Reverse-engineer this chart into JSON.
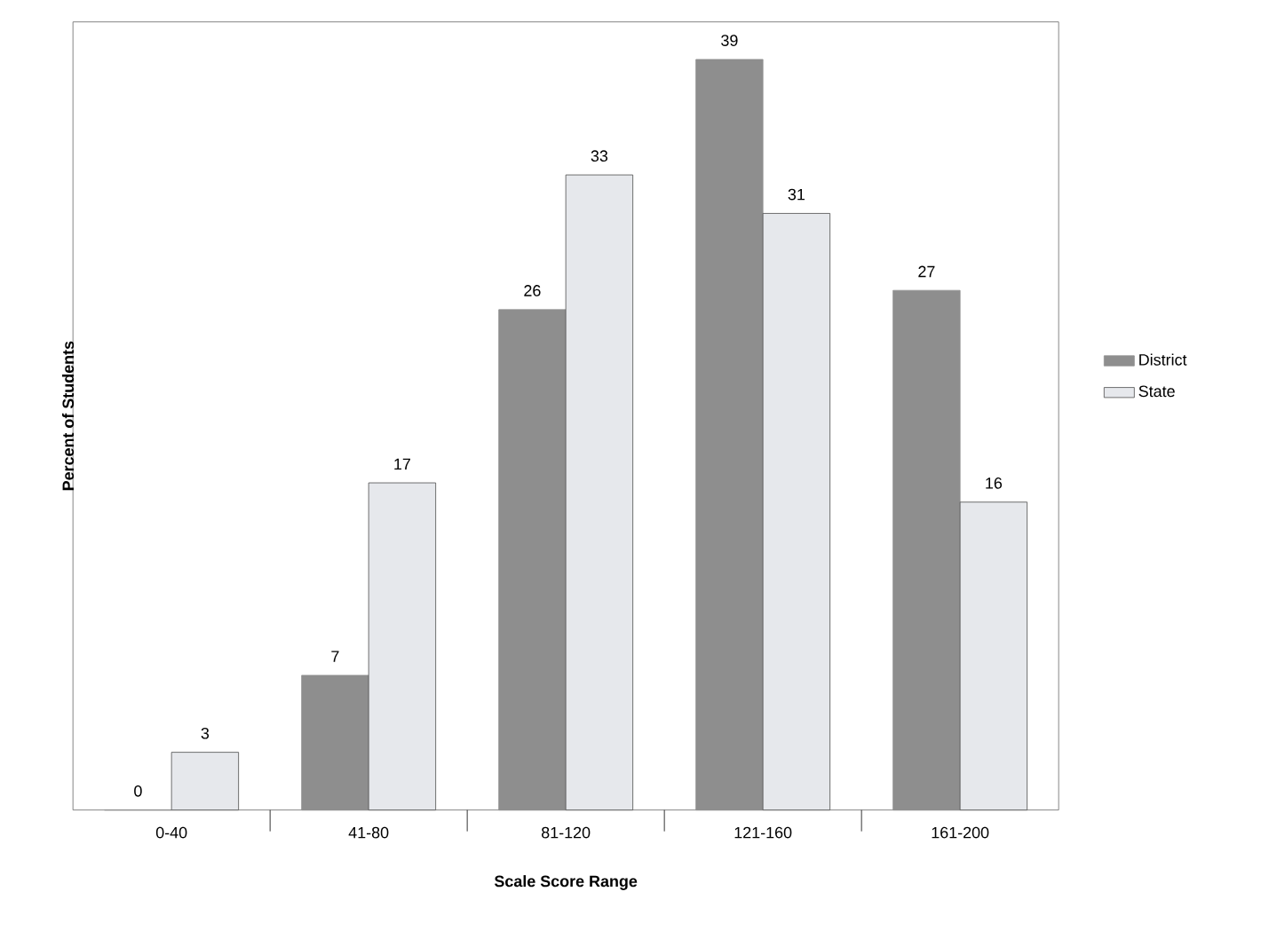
{
  "chart_data": {
    "type": "bar",
    "xlabel": "Scale Score Range",
    "ylabel": "Percent of Students",
    "categories": [
      "0-40",
      "41-80",
      "81-120",
      "121-160",
      "161-200"
    ],
    "series": [
      {
        "name": "District",
        "color": "#8e8e8e",
        "values": [
          0,
          7,
          26,
          39,
          27
        ]
      },
      {
        "name": "State",
        "color": "#e6e8ec",
        "values": [
          3,
          17,
          33,
          31,
          16
        ]
      }
    ],
    "data_labels": true,
    "legend": "right"
  }
}
